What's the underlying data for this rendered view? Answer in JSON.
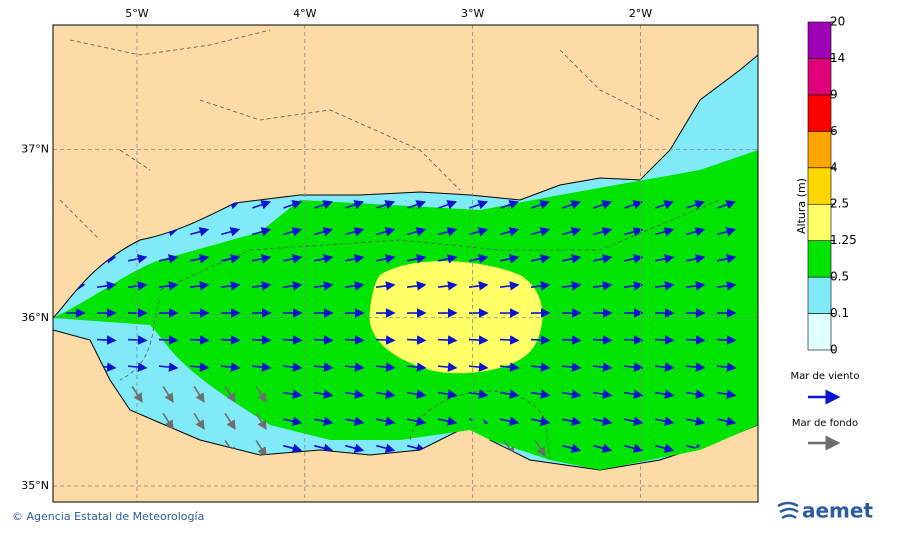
{
  "map": {
    "xlim": [
      -5.5,
      -1.3
    ],
    "ylim": [
      34.905,
      37.74
    ],
    "xticks": [
      {
        "value": -5,
        "label": "5°W"
      },
      {
        "value": -4,
        "label": "4°W"
      },
      {
        "value": -3,
        "label": "3°W"
      },
      {
        "value": -2,
        "label": "2°W"
      }
    ],
    "yticks": [
      {
        "value": 37,
        "label": "37°N"
      },
      {
        "value": 36,
        "label": "36°N"
      },
      {
        "value": 35,
        "label": "35°N"
      }
    ],
    "grid": true
  },
  "legend": {
    "title": "Altura (m)",
    "levels": [
      0,
      0.1,
      0.5,
      1.25,
      2.5,
      4,
      6,
      9,
      14,
      20
    ],
    "colors": [
      "#e0ffff",
      "#80eaf8",
      "#00e400",
      "#ffff66",
      "#ffd700",
      "#ffa500",
      "#ff0000",
      "#e0007a",
      "#a000b8"
    ],
    "wind_sea": "Mar de viento",
    "swell": "Mar de fondo"
  },
  "footer": {
    "credit": "© Agencia Estatal de Meteorología",
    "logo": "aemet"
  }
}
